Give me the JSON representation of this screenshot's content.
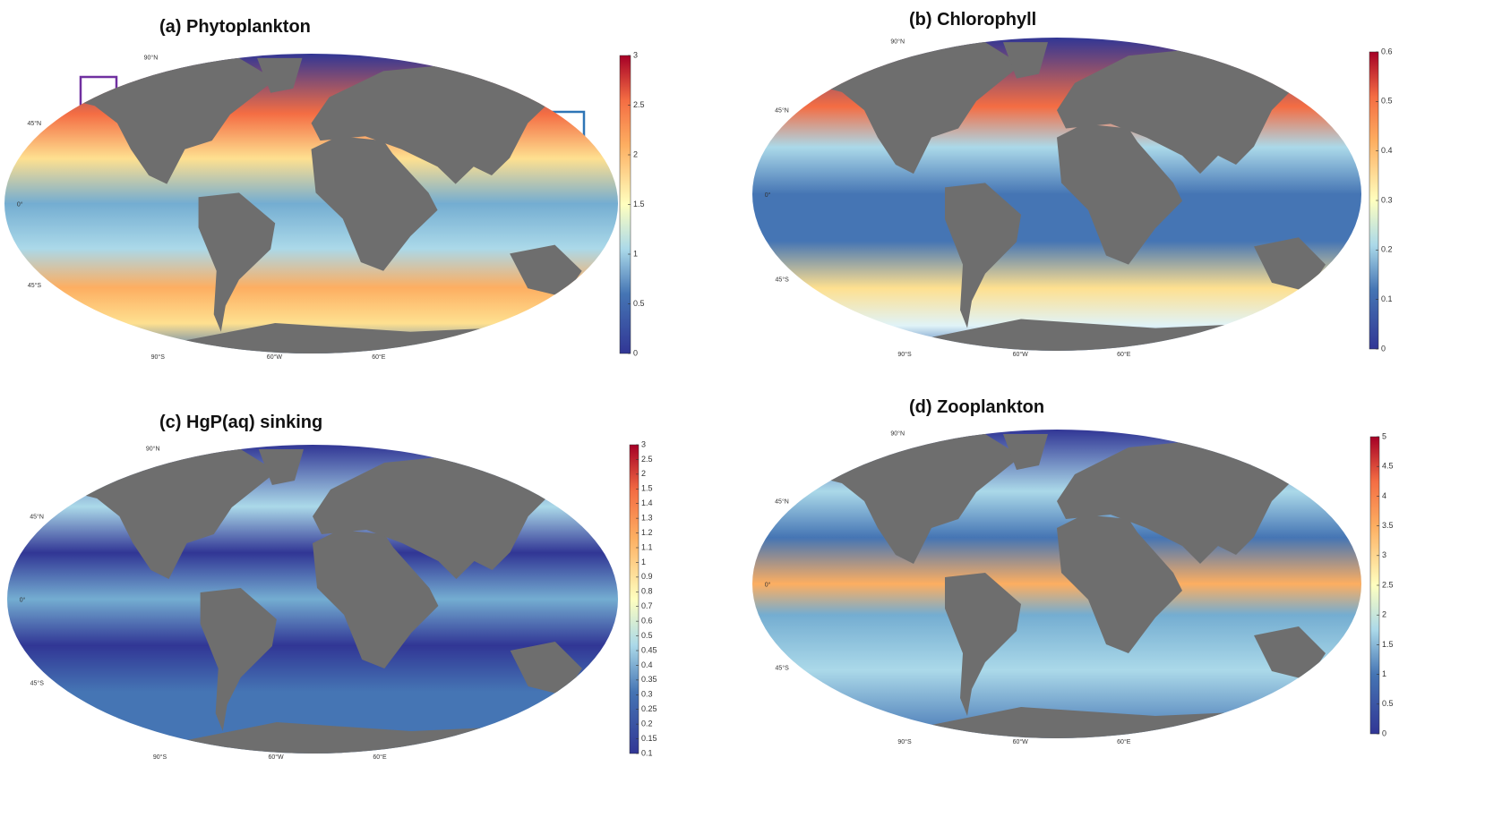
{
  "panels": [
    {
      "title": "(a) Phytoplankton",
      "colorbar_ticks": [
        0,
        0.5,
        1,
        1.5,
        2,
        2.5,
        3
      ],
      "colorbar_spacing": "linear",
      "lat_labels": [
        "90°N",
        "45°N",
        "0°",
        "45°S"
      ],
      "lon_labels": [
        "90°S",
        "60°W",
        "60°E"
      ]
    },
    {
      "title": "(b) Chlorophyll",
      "colorbar_ticks": [
        0,
        0.1,
        0.2,
        0.3,
        0.4,
        0.5,
        0.6
      ],
      "colorbar_spacing": "linear",
      "lat_labels": [
        "90°N",
        "45°N",
        "0°",
        "45°S"
      ],
      "lon_labels": [
        "90°S",
        "60°W",
        "60°E"
      ]
    },
    {
      "title": "(c) HgP(aq) sinking",
      "colorbar_ticks": [
        0.1,
        0.15,
        0.2,
        0.25,
        0.3,
        0.35,
        0.4,
        0.45,
        0.5,
        0.6,
        0.7,
        0.8,
        0.9,
        1,
        1.1,
        1.2,
        1.3,
        1.4,
        1.5,
        2,
        2.5,
        3
      ],
      "colorbar_spacing": "even",
      "lat_labels": [
        "90°N",
        "45°N",
        "0°",
        "45°S"
      ],
      "lon_labels": [
        "90°S",
        "60°W",
        "60°E"
      ]
    },
    {
      "title": "(d) Zooplankton",
      "colorbar_ticks": [
        0,
        0.5,
        1,
        1.5,
        2,
        2.5,
        3,
        3.5,
        4,
        4.5,
        5
      ],
      "colorbar_spacing": "linear",
      "lat_labels": [
        "90°N",
        "45°N",
        "0°",
        "45°S"
      ],
      "lon_labels": [
        "90°S",
        "60°W",
        "60°E"
      ]
    }
  ]
}
